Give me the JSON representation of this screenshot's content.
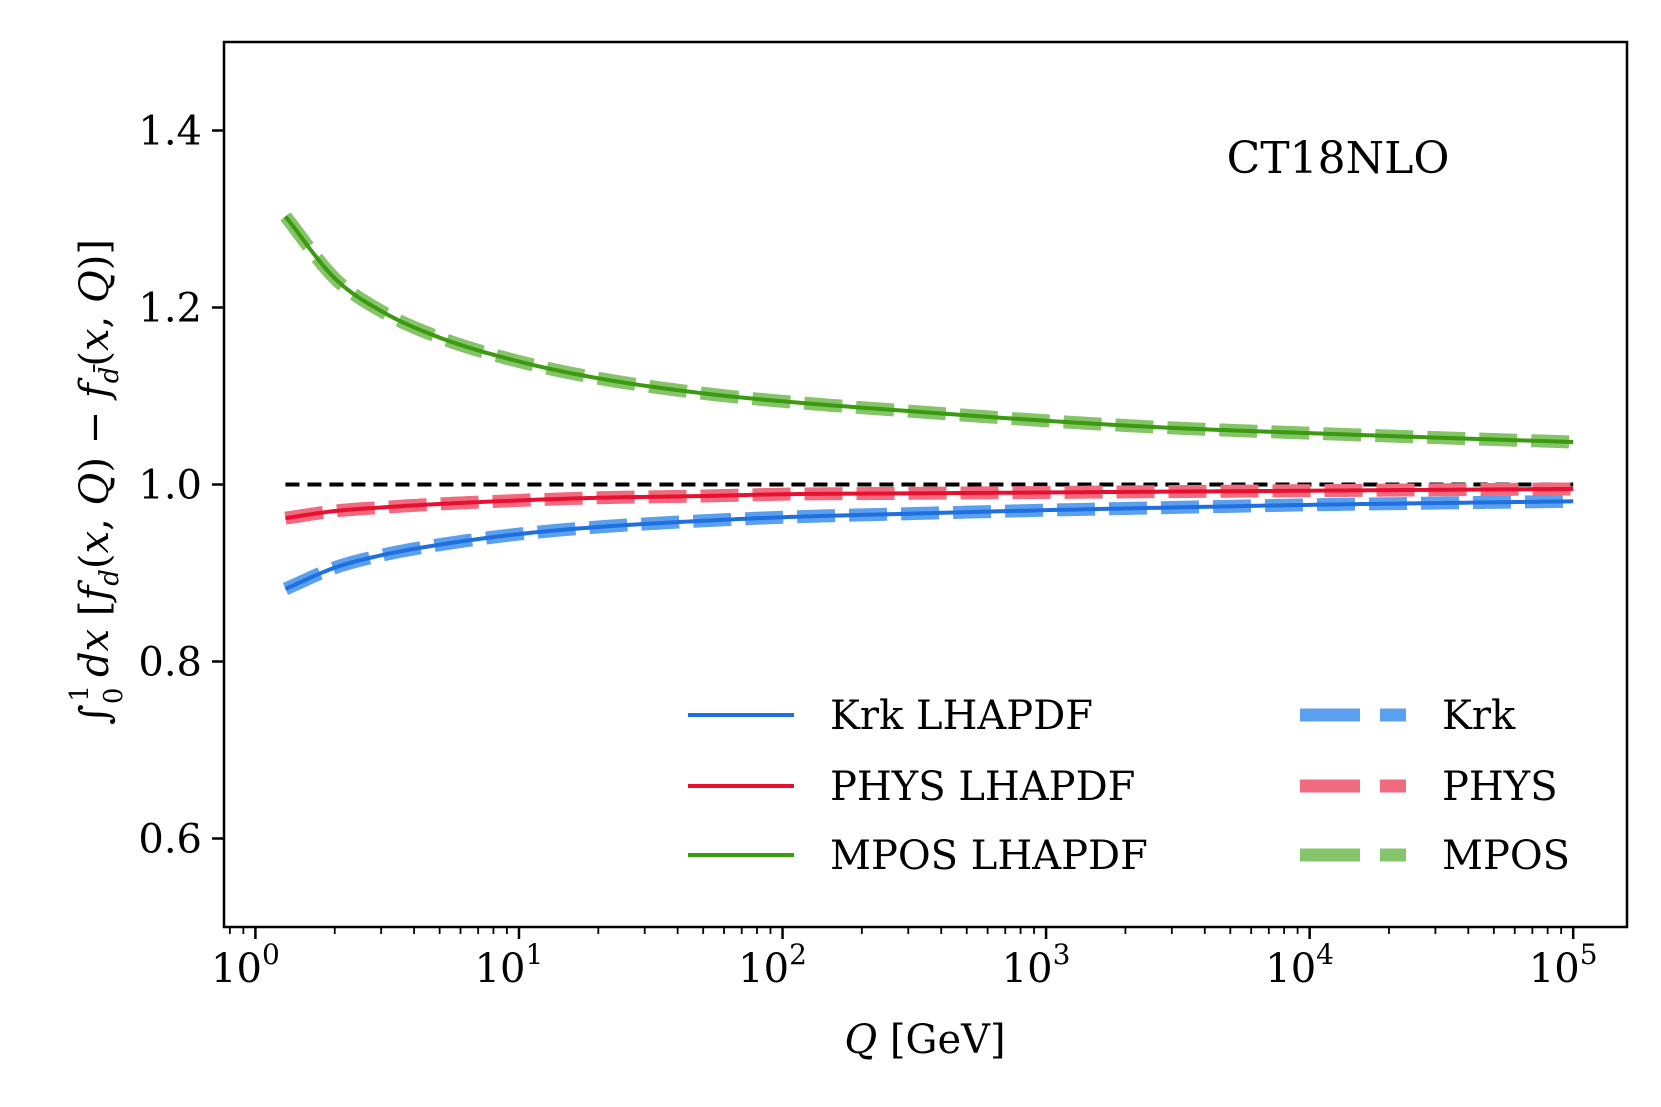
{
  "chart_data": {
    "type": "line",
    "title": "",
    "annotation": "CT18NLO",
    "xlabel": "Q [GeV]",
    "ylabel": "∫₀¹ dx [f_d(x,Q) − f_d̄(x,Q)]",
    "xscale": "log",
    "xlim": [
      0.76,
      160000
    ],
    "ylim": [
      0.5,
      1.5
    ],
    "x_ticks": [
      {
        "value": 1,
        "base": "10",
        "exp": "0"
      },
      {
        "value": 10,
        "base": "10",
        "exp": "1"
      },
      {
        "value": 100,
        "base": "10",
        "exp": "2"
      },
      {
        "value": 1000,
        "base": "10",
        "exp": "3"
      },
      {
        "value": 10000,
        "base": "10",
        "exp": "4"
      },
      {
        "value": 100000,
        "base": "10",
        "exp": "5"
      }
    ],
    "y_ticks": [
      {
        "value": 0.6,
        "label": "0.6"
      },
      {
        "value": 0.8,
        "label": "0.8"
      },
      {
        "value": 1.0,
        "label": "1.0"
      },
      {
        "value": 1.2,
        "label": "1.2"
      },
      {
        "value": 1.4,
        "label": "1.4"
      }
    ],
    "reference_line": {
      "y": 1.0,
      "color": "#000000"
    },
    "x": [
      1.3,
      2,
      3,
      5,
      10,
      20,
      50,
      100,
      300,
      1000,
      3000,
      10000,
      30000,
      100000
    ],
    "series": [
      {
        "name": "Krk LHAPDF",
        "style": "solid",
        "color": "#1f6fe0",
        "values": [
          0.882,
          0.906,
          0.92,
          0.932,
          0.944,
          0.952,
          0.959,
          0.963,
          0.967,
          0.971,
          0.974,
          0.977,
          0.979,
          0.981
        ]
      },
      {
        "name": "PHYS LHAPDF",
        "style": "solid",
        "color": "#e8102e",
        "values": [
          0.962,
          0.97,
          0.974,
          0.978,
          0.982,
          0.985,
          0.987,
          0.989,
          0.99,
          0.991,
          0.992,
          0.993,
          0.994,
          0.995
        ]
      },
      {
        "name": "MPOS LHAPDF",
        "style": "solid",
        "color": "#3a9a10",
        "values": [
          1.303,
          1.233,
          1.196,
          1.166,
          1.139,
          1.12,
          1.103,
          1.094,
          1.083,
          1.072,
          1.064,
          1.058,
          1.053,
          1.048
        ]
      },
      {
        "name": "Krk",
        "style": "dashed",
        "color": "#5aa0ee",
        "values": [
          0.882,
          0.906,
          0.92,
          0.932,
          0.944,
          0.952,
          0.959,
          0.963,
          0.967,
          0.971,
          0.974,
          0.977,
          0.979,
          0.981
        ]
      },
      {
        "name": "PHYS",
        "style": "dashed",
        "color": "#f06a80",
        "values": [
          0.962,
          0.97,
          0.974,
          0.978,
          0.982,
          0.985,
          0.987,
          0.989,
          0.99,
          0.991,
          0.992,
          0.993,
          0.994,
          0.995
        ]
      },
      {
        "name": "MPOS",
        "style": "dashed",
        "color": "#86c46a",
        "values": [
          1.303,
          1.233,
          1.196,
          1.166,
          1.139,
          1.12,
          1.103,
          1.094,
          1.083,
          1.072,
          1.064,
          1.058,
          1.053,
          1.048
        ]
      }
    ],
    "legend_position": "lower-right",
    "grid": false
  }
}
